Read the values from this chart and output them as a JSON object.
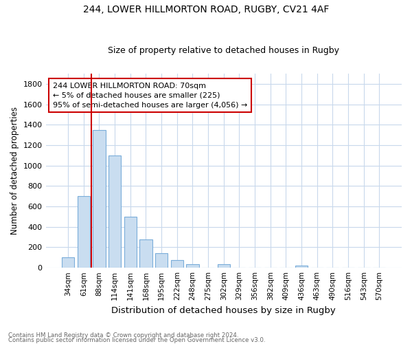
{
  "title1": "244, LOWER HILLMORTON ROAD, RUGBY, CV21 4AF",
  "title2": "Size of property relative to detached houses in Rugby",
  "xlabel": "Distribution of detached houses by size in Rugby",
  "ylabel": "Number of detached properties",
  "bar_color": "#c9ddf0",
  "bar_edge_color": "#7aadda",
  "background_color": "#ffffff",
  "grid_color": "#c8d8ec",
  "categories": [
    "34sqm",
    "61sqm",
    "88sqm",
    "114sqm",
    "141sqm",
    "168sqm",
    "195sqm",
    "222sqm",
    "248sqm",
    "275sqm",
    "302sqm",
    "329sqm",
    "356sqm",
    "382sqm",
    "409sqm",
    "436sqm",
    "463sqm",
    "490sqm",
    "516sqm",
    "543sqm",
    "570sqm"
  ],
  "values": [
    105,
    700,
    1345,
    1100,
    500,
    275,
    140,
    75,
    35,
    0,
    35,
    0,
    0,
    0,
    0,
    20,
    0,
    0,
    0,
    0,
    0
  ],
  "ylim": [
    0,
    1900
  ],
  "yticks": [
    0,
    200,
    400,
    600,
    800,
    1000,
    1200,
    1400,
    1600,
    1800
  ],
  "vline_x": 1.5,
  "vline_color": "#cc0000",
  "annotation_text": "244 LOWER HILLMORTON ROAD: 70sqm\n← 5% of detached houses are smaller (225)\n95% of semi-detached houses are larger (4,056) →",
  "annotation_box_color": "white",
  "annotation_box_edge": "#cc0000",
  "footer_text1": "Contains HM Land Registry data © Crown copyright and database right 2024.",
  "footer_text2": "Contains public sector information licensed under the Open Government Licence v3.0.",
  "figsize": [
    6.0,
    5.0
  ],
  "dpi": 100
}
